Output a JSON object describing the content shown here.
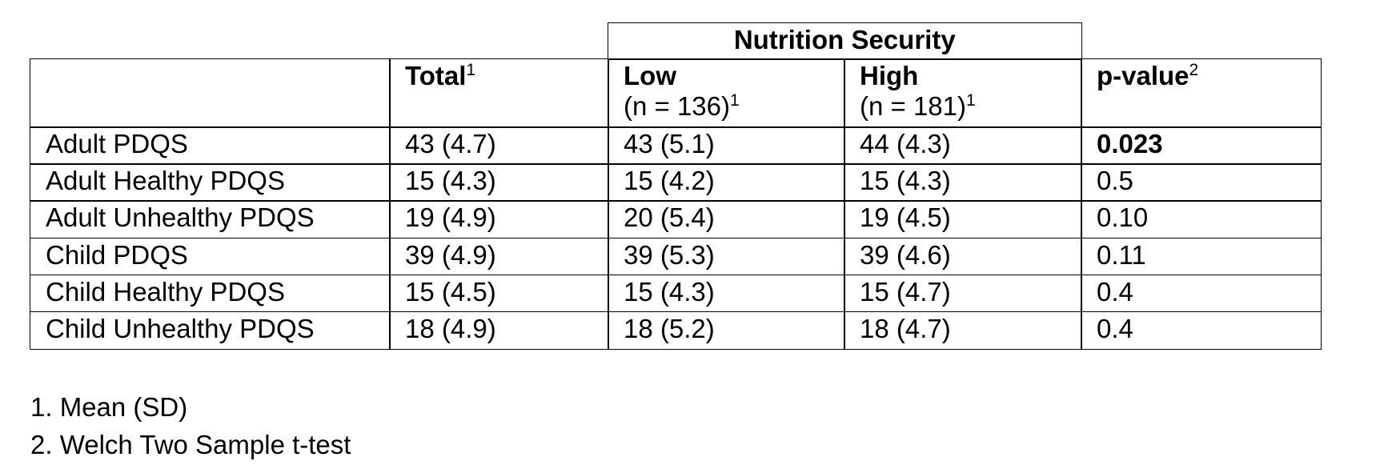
{
  "table": {
    "spanner": "Nutrition Security",
    "columns": [
      {
        "label": "Total",
        "sup": "1"
      },
      {
        "label": "Low",
        "sub": "(n = 136)",
        "sup": "1"
      },
      {
        "label": "High",
        "sub": "(n = 181)",
        "sup": "1"
      },
      {
        "label": "p-value",
        "sup": "2"
      }
    ],
    "rows": [
      [
        "Adult PDQS",
        "43 (4.7)",
        "43 (5.1)",
        "44 (4.3)",
        "0.023"
      ],
      [
        "Adult Healthy PDQS",
        "15 (4.3)",
        "15 (4.2)",
        "15 (4.3)",
        "0.5"
      ],
      [
        "Adult Unhealthy PDQS",
        "19 (4.9)",
        "20 (5.4)",
        "19 (4.5)",
        "0.10"
      ],
      [
        "Child PDQS",
        "39 (4.9)",
        "39 (5.3)",
        "39 (4.6)",
        "0.11"
      ],
      [
        "Child Healthy PDQS",
        "15 (4.5)",
        "15 (4.3)",
        "15 (4.7)",
        "0.4"
      ],
      [
        "Child Unhealthy PDQS",
        "18 (4.9)",
        "18 (5.2)",
        "18 (4.7)",
        "0.4"
      ]
    ],
    "bold_cells": [
      [
        0,
        4
      ]
    ]
  },
  "footnotes": [
    "1. Mean (SD)",
    "2. Welch Two Sample t-test"
  ]
}
